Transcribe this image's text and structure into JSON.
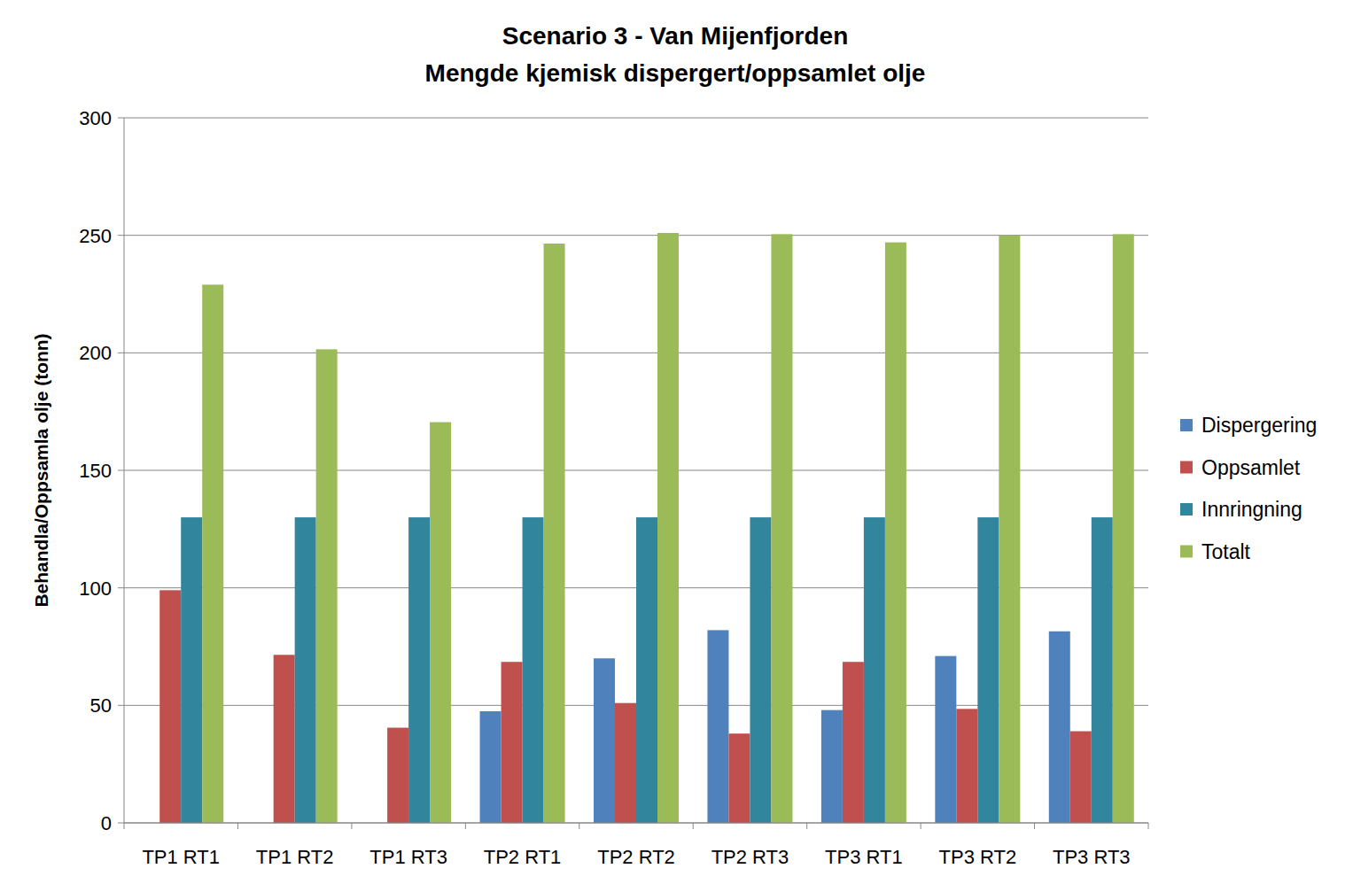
{
  "chart_data": {
    "type": "bar",
    "title": "Scenario 3 - Van Mijenfjorden",
    "subtitle": "Mengde kjemisk dispergert/oppsamlet olje",
    "y_label": "Behandla/Oppsamla olje (tonn)",
    "categories": [
      "TP1 RT1",
      "TP1 RT2",
      "TP1 RT3",
      "TP2 RT1",
      "TP2 RT2",
      "TP2 RT3",
      "TP3 RT1",
      "TP3 RT2",
      "TP3 RT3"
    ],
    "series": [
      {
        "name": "Dispergering",
        "color": "#4f81bd",
        "values": [
          0,
          0,
          0,
          47.5,
          70,
          82,
          48,
          71,
          81.5
        ]
      },
      {
        "name": "Oppsamlet",
        "color": "#c0504d",
        "values": [
          99,
          71.5,
          40.5,
          68.5,
          51,
          38,
          68.5,
          48.5,
          39
        ]
      },
      {
        "name": "Innringning",
        "color": "#31859c",
        "values": [
          130,
          130,
          130,
          130,
          130,
          130,
          130,
          130,
          130
        ]
      },
      {
        "name": "Totalt",
        "color": "#9bbb59",
        "values": [
          229,
          201.5,
          170.5,
          246.5,
          251,
          250.5,
          247,
          250,
          250.5
        ]
      }
    ],
    "ylim": [
      0,
      300
    ],
    "yticks": [
      0,
      50,
      100,
      150,
      200,
      250,
      300
    ],
    "grid": true,
    "legend": "right"
  }
}
